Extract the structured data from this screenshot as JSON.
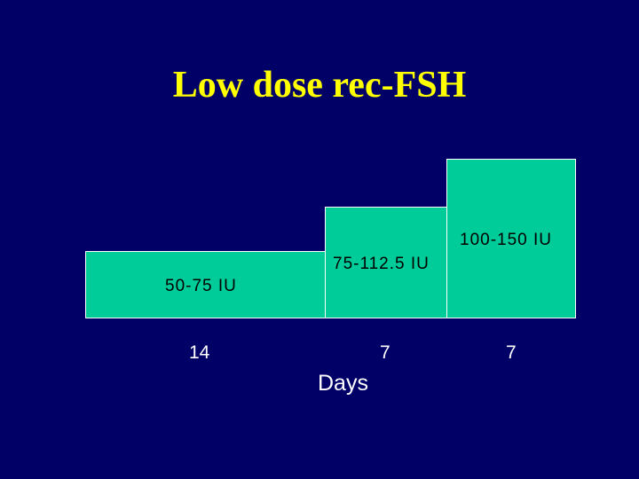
{
  "slide": {
    "title": "Low dose rec-FSH",
    "steps": [
      {
        "dose": "50-75 IU",
        "days": "14"
      },
      {
        "dose": "75-112.5 IU",
        "days": "7"
      },
      {
        "dose": "100-150 IU",
        "days": "7"
      }
    ],
    "axis_label": "Days"
  },
  "colors": {
    "background": "#000066",
    "title": "#ffff00",
    "block_fill": "#00cc99",
    "block_border": "#ffffff",
    "dose_text": "#000000",
    "axis_text": "#ffffff"
  }
}
